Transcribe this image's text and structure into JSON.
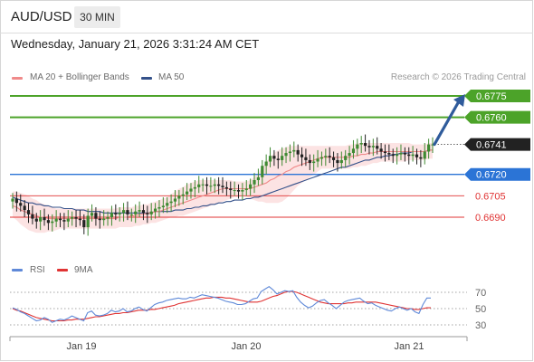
{
  "header": {
    "pair": "AUD/USD",
    "timeframe": "30 MIN",
    "datetime": "Wednesday, January 21, 2026 3:31:24 AM CET"
  },
  "legend": {
    "ma20": "MA 20 + Bollinger Bands",
    "ma50": "MA 50",
    "watermark": "Research © 2026 Trading Central",
    "rsi": "RSI",
    "ma9": "9MA"
  },
  "colors": {
    "green": "#4ca329",
    "blue": "#2b74d6",
    "red": "#e03434",
    "candle_up": "#3f8a32",
    "candle_down": "#222222",
    "ma20": "#f08a8a",
    "ma50": "#34518a",
    "band": "#fbd9d9",
    "rsi": "#5f89d8",
    "rsi_ma": "#e03434",
    "arrow": "#2f5b9b"
  },
  "chart_data": [
    {
      "type": "candlestick",
      "instrument": "AUD/USD",
      "timeframe": "30 MIN",
      "ylim": [
        0.6678,
        0.6782
      ],
      "x_ticks": [
        "Jan 19",
        "Jan 20",
        "Jan 21"
      ],
      "tick_spacing": [
        "Jan 19",
        0,
        "Jan 20",
        48,
        "Jan 21",
        96
      ],
      "current_price": "0.6741",
      "levels": [
        {
          "label": "0.6775",
          "value": 0.6775,
          "color": "green"
        },
        {
          "label": "0.6760",
          "value": 0.676,
          "color": "green"
        },
        {
          "label": "0.6741",
          "value": 0.6741,
          "color": "current"
        },
        {
          "label": "0.6720",
          "value": 0.672,
          "color": "blue"
        },
        {
          "label": "0.6705",
          "value": 0.6705,
          "color": "red"
        },
        {
          "label": "0.6690",
          "value": 0.669,
          "color": "red"
        }
      ],
      "forecast_arrow": {
        "from": 0.6741,
        "to": 0.6775
      },
      "closes": [
        0.6703,
        0.67,
        0.6698,
        0.6695,
        0.6692,
        0.6689,
        0.6687,
        0.669,
        0.6688,
        0.6686,
        0.6687,
        0.6689,
        0.6688,
        0.6687,
        0.6689,
        0.669,
        0.6689,
        0.6688,
        0.6683,
        0.6691,
        0.6693,
        0.6689,
        0.6688,
        0.6689,
        0.669,
        0.6693,
        0.6692,
        0.6693,
        0.6695,
        0.6692,
        0.6692,
        0.6694,
        0.6695,
        0.6693,
        0.6692,
        0.6694,
        0.6696,
        0.6697,
        0.6698,
        0.67,
        0.6701,
        0.6703,
        0.6705,
        0.6706,
        0.6708,
        0.671,
        0.6711,
        0.6713,
        0.6713,
        0.6712,
        0.6712,
        0.6713,
        0.6712,
        0.6711,
        0.671,
        0.6709,
        0.6709,
        0.6708,
        0.6709,
        0.671,
        0.6713,
        0.6716,
        0.6718,
        0.6726,
        0.6729,
        0.6733,
        0.6731,
        0.673,
        0.6733,
        0.6735,
        0.6736,
        0.6737,
        0.6734,
        0.6732,
        0.673,
        0.6728,
        0.6729,
        0.6731,
        0.6732,
        0.6733,
        0.6732,
        0.673,
        0.6728,
        0.673,
        0.6733,
        0.6735,
        0.6738,
        0.6741,
        0.6742,
        0.674,
        0.6739,
        0.674,
        0.6738,
        0.6736,
        0.6735,
        0.6734,
        0.6733,
        0.6734,
        0.6735,
        0.6734,
        0.6733,
        0.6734,
        0.6732,
        0.6731,
        0.6736,
        0.6741,
        0.6741
      ],
      "ma20": [
        0.6698,
        0.6697,
        0.6695,
        0.6694,
        0.6693,
        0.6692,
        0.6691,
        0.669,
        0.669,
        0.6689,
        0.6689,
        0.6689,
        0.6689,
        0.6689,
        0.6689,
        0.6689,
        0.6689,
        0.6689,
        0.6689,
        0.6689,
        0.6689,
        0.6689,
        0.6689,
        0.6689,
        0.6689,
        0.6689,
        0.6689,
        0.669,
        0.669,
        0.669,
        0.6691,
        0.6691,
        0.6692,
        0.6692,
        0.6693,
        0.6693,
        0.6694,
        0.6694,
        0.6695,
        0.6696,
        0.6697,
        0.6698,
        0.6699,
        0.67,
        0.6701,
        0.6702,
        0.6703,
        0.6704,
        0.6705,
        0.6706,
        0.6707,
        0.6708,
        0.6709,
        0.671,
        0.671,
        0.671,
        0.671,
        0.671,
        0.671,
        0.671,
        0.671,
        0.6711,
        0.6712,
        0.6713,
        0.6714,
        0.6716,
        0.6717,
        0.6719,
        0.672,
        0.6722,
        0.6723,
        0.6725,
        0.6726,
        0.6727,
        0.6728,
        0.6729,
        0.673,
        0.6731,
        0.6732,
        0.6732,
        0.6732,
        0.6732,
        0.6732,
        0.6732,
        0.6732,
        0.6732,
        0.6733,
        0.6733,
        0.6734,
        0.6734,
        0.6735,
        0.6735,
        0.6736,
        0.6736,
        0.6736,
        0.6736,
        0.6736,
        0.6736,
        0.6736,
        0.6736,
        0.6736,
        0.6736,
        0.6736,
        0.6736,
        0.6736,
        0.6737,
        0.6737
      ],
      "ma50": [
        0.6704,
        0.6703,
        0.6702,
        0.6701,
        0.67,
        0.67,
        0.6699,
        0.6699,
        0.6698,
        0.6698,
        0.6697,
        0.6697,
        0.6697,
        0.6696,
        0.6696,
        0.6696,
        0.6695,
        0.6695,
        0.6695,
        0.6694,
        0.6694,
        0.6694,
        0.6694,
        0.6693,
        0.6693,
        0.6693,
        0.6693,
        0.6693,
        0.6693,
        0.6693,
        0.6693,
        0.6693,
        0.6693,
        0.6693,
        0.6693,
        0.6693,
        0.6694,
        0.6694,
        0.6694,
        0.6694,
        0.6694,
        0.6695,
        0.6695,
        0.6695,
        0.6696,
        0.6696,
        0.6697,
        0.6697,
        0.6698,
        0.6698,
        0.6699,
        0.6699,
        0.67,
        0.67,
        0.6701,
        0.6701,
        0.6702,
        0.6702,
        0.6702,
        0.6703,
        0.6703,
        0.6704,
        0.6704,
        0.6705,
        0.6706,
        0.6707,
        0.6708,
        0.6709,
        0.671,
        0.6711,
        0.6712,
        0.6713,
        0.6714,
        0.6715,
        0.6716,
        0.6717,
        0.6718,
        0.6719,
        0.672,
        0.6721,
        0.6722,
        0.6723,
        0.6724,
        0.6725,
        0.6725,
        0.6726,
        0.6727,
        0.6728,
        0.6729,
        0.673,
        0.673,
        0.6731,
        0.6732,
        0.6732,
        0.6733,
        0.6733,
        0.6734,
        0.6734,
        0.6735,
        0.6735,
        0.6735,
        0.6736,
        0.6736,
        0.6736,
        0.6736,
        0.6737,
        0.6737
      ],
      "bb_upper": [
        0.6708,
        0.6708,
        0.6707,
        0.6706,
        0.6705,
        0.6703,
        0.6702,
        0.67,
        0.6699,
        0.6698,
        0.6697,
        0.6696,
        0.6696,
        0.6696,
        0.6696,
        0.6696,
        0.6696,
        0.6696,
        0.6696,
        0.6696,
        0.6696,
        0.6696,
        0.6696,
        0.6696,
        0.6696,
        0.6696,
        0.6696,
        0.6697,
        0.6697,
        0.6697,
        0.6697,
        0.6698,
        0.6698,
        0.6699,
        0.6699,
        0.67,
        0.6701,
        0.6702,
        0.6703,
        0.6704,
        0.6706,
        0.6708,
        0.671,
        0.6711,
        0.6713,
        0.6714,
        0.6715,
        0.6716,
        0.6716,
        0.6716,
        0.6716,
        0.6716,
        0.6716,
        0.6716,
        0.6716,
        0.6716,
        0.6715,
        0.6715,
        0.6715,
        0.6715,
        0.6716,
        0.6718,
        0.6721,
        0.6725,
        0.6729,
        0.6732,
        0.6735,
        0.6737,
        0.6738,
        0.6739,
        0.674,
        0.674,
        0.674,
        0.674,
        0.674,
        0.674,
        0.674,
        0.674,
        0.674,
        0.674,
        0.674,
        0.674,
        0.674,
        0.674,
        0.674,
        0.6741,
        0.6741,
        0.6742,
        0.6742,
        0.6742,
        0.6742,
        0.6742,
        0.6742,
        0.6742,
        0.6742,
        0.6742,
        0.6742,
        0.6742,
        0.6742,
        0.6742,
        0.6742,
        0.6741,
        0.6741,
        0.6741,
        0.6741,
        0.6742,
        0.6742
      ],
      "bb_lower": [
        0.669,
        0.6688,
        0.6685,
        0.6683,
        0.6681,
        0.668,
        0.6679,
        0.6679,
        0.6679,
        0.668,
        0.668,
        0.6681,
        0.6682,
        0.6682,
        0.6682,
        0.6682,
        0.6682,
        0.6682,
        0.6682,
        0.6682,
        0.6682,
        0.6682,
        0.6682,
        0.6682,
        0.6682,
        0.6682,
        0.6682,
        0.6683,
        0.6683,
        0.6683,
        0.6683,
        0.6684,
        0.6684,
        0.6685,
        0.6685,
        0.6686,
        0.6686,
        0.6687,
        0.6688,
        0.6689,
        0.669,
        0.669,
        0.6691,
        0.6691,
        0.6692,
        0.6693,
        0.6694,
        0.6695,
        0.6696,
        0.6697,
        0.6698,
        0.6699,
        0.67,
        0.6701,
        0.6702,
        0.6703,
        0.6704,
        0.6704,
        0.6705,
        0.6704,
        0.6703,
        0.6702,
        0.6701,
        0.6701,
        0.67,
        0.67,
        0.67,
        0.67,
        0.6701,
        0.6703,
        0.6706,
        0.6709,
        0.6712,
        0.6714,
        0.6716,
        0.6718,
        0.672,
        0.6722,
        0.6724,
        0.6724,
        0.6724,
        0.6724,
        0.6724,
        0.6724,
        0.6724,
        0.6724,
        0.6725,
        0.6725,
        0.6726,
        0.6726,
        0.6727,
        0.6728,
        0.6728,
        0.6729,
        0.6729,
        0.6729,
        0.6729,
        0.6729,
        0.6729,
        0.6729,
        0.673,
        0.673,
        0.673,
        0.673,
        0.673,
        0.6731,
        0.6731
      ]
    },
    {
      "type": "line",
      "title": "RSI",
      "series": [
        {
          "name": "RSI"
        },
        {
          "name": "9MA"
        }
      ],
      "ylim": [
        20,
        80
      ],
      "y_ticks": [
        "70",
        "50",
        "30"
      ],
      "rsi": [
        51,
        49,
        46,
        44,
        41,
        38,
        35,
        36,
        39,
        37,
        33,
        35,
        37,
        36,
        38,
        41,
        39,
        37,
        35,
        45,
        47,
        42,
        41,
        42,
        44,
        48,
        46,
        47,
        50,
        46,
        47,
        50,
        52,
        49,
        47,
        51,
        55,
        57,
        58,
        60,
        61,
        62,
        63,
        62,
        62,
        64,
        63,
        65,
        67,
        66,
        65,
        64,
        63,
        61,
        59,
        58,
        57,
        55,
        55,
        56,
        59,
        62,
        63,
        71,
        74,
        77,
        73,
        68,
        70,
        72,
        71,
        72,
        64,
        58,
        54,
        51,
        53,
        57,
        60,
        61,
        57,
        54,
        50,
        54,
        58,
        60,
        61,
        62,
        63,
        59,
        56,
        57,
        54,
        52,
        50,
        48,
        47,
        50,
        52,
        50,
        48,
        50,
        46,
        44,
        55,
        63,
        63
      ],
      "ma9": [
        50,
        48,
        47,
        45,
        43,
        41,
        39,
        38,
        37,
        36,
        35,
        35,
        35,
        35,
        36,
        36,
        37,
        37,
        37,
        38,
        39,
        40,
        40,
        41,
        42,
        43,
        44,
        44,
        45,
        45,
        46,
        47,
        48,
        48,
        48,
        49,
        49,
        50,
        51,
        52,
        53,
        54,
        56,
        57,
        58,
        59,
        60,
        61,
        62,
        63,
        63,
        64,
        64,
        64,
        63,
        63,
        62,
        61,
        60,
        59,
        58,
        58,
        58,
        59,
        61,
        63,
        65,
        66,
        68,
        70,
        71,
        71,
        70,
        68,
        66,
        64,
        62,
        60,
        58,
        57,
        56,
        56,
        56,
        56,
        56,
        57,
        57,
        58,
        58,
        58,
        58,
        58,
        58,
        57,
        56,
        55,
        54,
        53,
        52,
        51,
        50,
        50,
        49,
        49,
        50,
        51,
        51
      ]
    }
  ]
}
